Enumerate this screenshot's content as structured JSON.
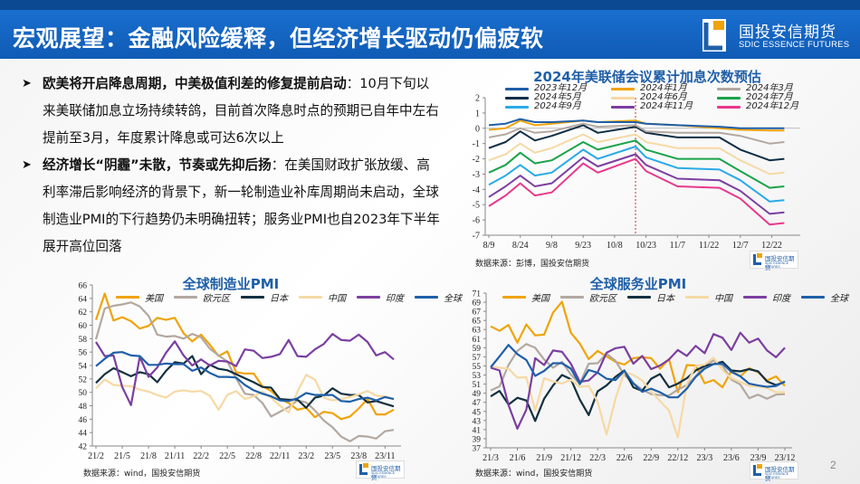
{
  "header": {
    "title": "宏观展望：金融风险缓释，但经济增长驱动仍偏疲软",
    "logo_cn": "国投安信期货",
    "logo_en": "SDIC ESSENCE FUTURES"
  },
  "bullets": [
    {
      "bold": "欧美将开启降息周期，中美极值利差的修复提前启动",
      "text": "：10月下旬以来美联储加息立场持续转鸽，目前首次降息时点的预期已自年中左右提前至3月，年度累计降息或可达6次以上"
    },
    {
      "bold": "经济增长“阴霾”未散，节奏或先抑后扬",
      "text": "：在美国财政扩张放缓、高利率滞后影响经济的背景下，新一轮制造业补库周期尚未启动，全球制造业PMI的下行趋势仍未明确扭转；服务业PMI也自2023年下半年展开高位回落"
    }
  ],
  "page_number": "2",
  "mini_logo_cn": "国投安信期货",
  "mini_logo_en": "SDIC ESSENCE FUTURES",
  "chart_data": [
    {
      "id": "fed",
      "type": "line",
      "title": "2024年美联储会议累计加息次数预估",
      "source": "数据来源：彭博，国投安信期货",
      "xlabel": "",
      "ylabel": "",
      "x_unit": "days since 8/9",
      "xlim": [
        0,
        146
      ],
      "ylim": [
        -7,
        2
      ],
      "yticks": [
        -7,
        -6,
        -5,
        -4,
        -3,
        -2,
        -1,
        0,
        1,
        2
      ],
      "x_tick_values": [
        0,
        15,
        30,
        45,
        60,
        75,
        90,
        105,
        120,
        135
      ],
      "x_tick_labels": [
        "8/9",
        "8/24",
        "9/8",
        "9/23",
        "10/8",
        "10/23",
        "11/7",
        "11/22",
        "12/7",
        "12/22"
      ],
      "marker_line": {
        "x": 70,
        "color": "#c0392b"
      },
      "legend": "top",
      "x": [
        0,
        8,
        15,
        22,
        30,
        45,
        52,
        70,
        75,
        90,
        110,
        120,
        134,
        141
      ],
      "series": [
        {
          "name": "2023年12月",
          "color": "#1f5fa8",
          "values": [
            0.2,
            0.3,
            0.6,
            0.4,
            0.4,
            0.5,
            0.4,
            0.4,
            0.3,
            0.2,
            0.1,
            0.0,
            0.0,
            0.0
          ]
        },
        {
          "name": "2024年1月",
          "color": "#f0a30a",
          "values": [
            -0.1,
            0.0,
            0.5,
            0.2,
            0.3,
            0.5,
            0.4,
            0.5,
            0.3,
            0.2,
            0.0,
            -0.1,
            -0.15,
            -0.15
          ]
        },
        {
          "name": "2024年3月",
          "color": "#b3a8a0",
          "values": [
            -0.6,
            -0.4,
            0.0,
            -0.3,
            -0.2,
            0.3,
            0.1,
            0.2,
            -0.2,
            -0.3,
            -0.3,
            -0.5,
            -1.0,
            -0.9
          ]
        },
        {
          "name": "2024年5月",
          "color": "#0f2e45",
          "values": [
            -1.3,
            -0.9,
            -0.2,
            -0.8,
            -0.5,
            0.2,
            -0.3,
            0.1,
            -0.3,
            -0.6,
            -0.6,
            -1.4,
            -2.1,
            -2.0
          ]
        },
        {
          "name": "2024年6月",
          "color": "#f6d9a4",
          "values": [
            -2.1,
            -1.7,
            -1.0,
            -1.6,
            -1.3,
            -0.4,
            -0.9,
            -0.4,
            -0.9,
            -1.3,
            -1.3,
            -2.1,
            -3.0,
            -2.9
          ]
        },
        {
          "name": "2024年7月",
          "color": "#1aa34a",
          "values": [
            -2.9,
            -2.4,
            -1.6,
            -2.3,
            -2.1,
            -0.9,
            -1.4,
            -0.8,
            -1.4,
            -2.0,
            -2.0,
            -2.8,
            -3.9,
            -3.8
          ]
        },
        {
          "name": "2024年9月",
          "color": "#2aaae8",
          "values": [
            -3.7,
            -3.1,
            -2.4,
            -3.1,
            -2.9,
            -1.4,
            -2.0,
            -1.2,
            -1.9,
            -2.6,
            -2.7,
            -3.4,
            -4.8,
            -4.7
          ]
        },
        {
          "name": "2024年11月",
          "color": "#7b3fa0",
          "values": [
            -4.5,
            -3.8,
            -3.1,
            -3.8,
            -3.6,
            -1.9,
            -2.5,
            -1.7,
            -2.4,
            -3.3,
            -3.4,
            -4.1,
            -5.6,
            -5.5
          ]
        },
        {
          "name": "2024年12月",
          "color": "#e8388c",
          "values": [
            -5.1,
            -4.4,
            -3.6,
            -4.4,
            -4.2,
            -2.3,
            -2.9,
            -2.0,
            -2.8,
            -3.8,
            -3.9,
            -4.6,
            -6.3,
            -6.2
          ]
        }
      ]
    },
    {
      "id": "mfg",
      "type": "line",
      "title": "全球制造业PMI",
      "source": "数据来源：wind，国投安信期货",
      "xlabel": "",
      "ylabel": "",
      "x_unit": "month index from 21/2",
      "xlim": [
        0,
        34
      ],
      "ylim": [
        42,
        66
      ],
      "yticks": [
        42,
        44,
        46,
        48,
        50,
        52,
        54,
        56,
        58,
        60,
        62,
        64,
        66
      ],
      "x_tick_values": [
        0,
        3,
        6,
        9,
        12,
        15,
        18,
        21,
        24,
        27,
        30,
        33
      ],
      "x_tick_labels": [
        "21/2",
        "21/5",
        "21/8",
        "21/11",
        "22/2",
        "22/5",
        "22/8",
        "22/11",
        "23/2",
        "23/5",
        "23/8",
        "23/11"
      ],
      "legend": "top",
      "series": [
        {
          "name": "美国",
          "color": "#f0a30a",
          "values": [
            60.8,
            64.7,
            60.7,
            61.2,
            60.6,
            59.5,
            59.9,
            61.1,
            60.8,
            61.1,
            58.8,
            57.6,
            58.6,
            57.1,
            55.4,
            56.1,
            53.0,
            52.8,
            52.8,
            50.9,
            50.2,
            49.0,
            48.4,
            47.4,
            47.7,
            46.3,
            47.1,
            46.9,
            46.0,
            46.4,
            47.6,
            49.0,
            46.7,
            46.7,
            47.4
          ]
        },
        {
          "name": "欧元区",
          "color": "#b3a8a0",
          "values": [
            57.9,
            62.5,
            62.9,
            63.1,
            63.4,
            62.8,
            61.4,
            58.6,
            58.3,
            58.4,
            58.0,
            58.7,
            58.2,
            56.5,
            55.5,
            54.6,
            52.1,
            49.8,
            49.6,
            48.4,
            46.4,
            47.1,
            47.8,
            48.8,
            48.5,
            47.3,
            45.8,
            44.8,
            43.4,
            42.7,
            43.5,
            43.4,
            43.1,
            44.2,
            44.4
          ]
        },
        {
          "name": "日本",
          "color": "#14303f",
          "values": [
            51.4,
            52.7,
            53.6,
            53.0,
            52.4,
            53.0,
            52.7,
            51.5,
            53.2,
            54.5,
            54.3,
            55.4,
            52.7,
            54.1,
            53.5,
            53.3,
            52.7,
            52.1,
            51.5,
            50.8,
            50.7,
            49.0,
            48.9,
            48.9,
            47.7,
            49.2,
            49.5,
            50.6,
            49.8,
            49.6,
            49.6,
            48.5,
            48.7,
            48.3,
            47.9
          ]
        },
        {
          "name": "中国",
          "color": "#f6d9a4",
          "values": [
            50.6,
            51.9,
            51.1,
            51.0,
            50.9,
            50.4,
            50.1,
            49.6,
            49.2,
            50.1,
            50.3,
            50.1,
            50.2,
            49.5,
            47.4,
            49.6,
            50.2,
            49.0,
            49.4,
            50.1,
            49.2,
            48.0,
            47.0,
            50.1,
            52.6,
            51.9,
            49.2,
            48.8,
            49.0,
            49.3,
            49.7,
            50.2,
            49.5,
            49.4,
            49.0
          ]
        },
        {
          "name": "印度",
          "color": "#7b3fa0",
          "values": [
            57.5,
            55.4,
            55.5,
            50.8,
            48.1,
            55.3,
            52.3,
            53.7,
            55.9,
            57.6,
            55.5,
            54.0,
            54.9,
            54.0,
            54.7,
            54.6,
            53.9,
            56.4,
            56.2,
            55.1,
            55.3,
            55.7,
            57.8,
            55.4,
            55.3,
            56.4,
            57.2,
            58.7,
            57.8,
            57.7,
            58.6,
            57.5,
            55.5,
            56.0,
            54.9
          ]
        },
        {
          "name": "全球",
          "color": "#1f5fa8",
          "values": [
            53.9,
            55.0,
            55.9,
            56.0,
            55.5,
            55.4,
            54.1,
            54.1,
            54.3,
            54.2,
            54.2,
            53.2,
            53.7,
            52.9,
            52.3,
            52.3,
            52.2,
            51.1,
            50.3,
            49.8,
            49.4,
            48.8,
            48.7,
            49.1,
            49.9,
            49.6,
            49.6,
            49.6,
            48.7,
            48.6,
            49.0,
            49.2,
            48.8,
            49.3,
            49.0
          ]
        }
      ]
    },
    {
      "id": "svc",
      "type": "line",
      "title": "全球服务业PMI",
      "source": "数据来源：wind，国投安信期货",
      "xlabel": "",
      "ylabel": "",
      "x_unit": "month index from 21/3",
      "xlim": [
        0,
        33
      ],
      "ylim": [
        37,
        71
      ],
      "yticks": [
        37,
        39,
        41,
        43,
        45,
        47,
        49,
        51,
        53,
        55,
        57,
        59,
        61,
        63,
        65,
        67,
        69,
        71
      ],
      "x_tick_values": [
        0,
        3,
        6,
        9,
        12,
        15,
        18,
        21,
        24,
        27,
        30,
        33
      ],
      "x_tick_labels": [
        "21/3",
        "21/6",
        "21/9",
        "21/12",
        "22/3",
        "22/6",
        "22/9",
        "22/12",
        "23/3",
        "23/6",
        "23/9",
        "23/12"
      ],
      "legend": "top",
      "series": [
        {
          "name": "美国",
          "color": "#f0a30a",
          "values": [
            63.7,
            62.7,
            64.0,
            60.1,
            64.1,
            61.7,
            61.9,
            66.7,
            69.1,
            62.3,
            59.9,
            56.5,
            58.3,
            57.1,
            55.9,
            55.3,
            56.7,
            56.9,
            56.7,
            54.4,
            56.5,
            49.2,
            55.2,
            55.1,
            51.2,
            51.9,
            50.3,
            53.9,
            52.7,
            54.5,
            53.6,
            51.8,
            52.7,
            50.6
          ]
        },
        {
          "name": "欧元区",
          "color": "#b3a8a0",
          "values": [
            49.6,
            50.5,
            55.2,
            58.3,
            59.8,
            59.0,
            56.4,
            54.6,
            55.9,
            53.1,
            51.1,
            55.5,
            55.6,
            57.7,
            56.1,
            53.0,
            51.2,
            49.8,
            48.8,
            48.6,
            48.5,
            49.8,
            50.8,
            52.7,
            55.0,
            56.2,
            55.1,
            52.0,
            50.9,
            47.9,
            48.7,
            47.8,
            48.7,
            48.8
          ]
        },
        {
          "name": "日本",
          "color": "#14303f",
          "values": [
            48.3,
            49.5,
            46.5,
            48.0,
            47.4,
            42.9,
            47.8,
            50.7,
            53.0,
            52.1,
            47.6,
            44.2,
            49.4,
            50.7,
            52.6,
            54.0,
            50.3,
            49.5,
            52.2,
            53.2,
            50.3,
            51.1,
            52.3,
            54.0,
            55.0,
            55.4,
            55.9,
            54.0,
            53.8,
            54.3,
            53.8,
            51.6,
            50.8,
            51.5
          ]
        },
        {
          "name": "中国",
          "color": "#f6d9a4",
          "values": [
            54.9,
            54.6,
            54.4,
            52.4,
            52.5,
            45.2,
            52.3,
            51.6,
            51.1,
            52.0,
            50.4,
            50.6,
            47.1,
            39.9,
            47.8,
            53.7,
            53.0,
            51.8,
            49.4,
            47.3,
            45.2,
            39.3,
            51.0,
            55.0,
            55.3,
            56.8,
            54.1,
            52.3,
            51.5,
            50.6,
            50.5,
            50.1,
            49.2,
            49.2
          ]
        },
        {
          "name": "印度",
          "color": "#7b3fa0",
          "values": [
            54.6,
            54.0,
            46.4,
            41.2,
            45.4,
            56.7,
            55.2,
            58.4,
            58.1,
            55.5,
            51.5,
            51.8,
            53.6,
            57.9,
            58.9,
            59.2,
            55.5,
            57.2,
            54.3,
            55.1,
            56.4,
            58.5,
            57.2,
            59.4,
            57.8,
            62.0,
            61.2,
            58.5,
            62.3,
            60.1,
            61.0,
            58.4,
            56.9,
            59.0
          ]
        },
        {
          "name": "全球",
          "color": "#1f5fa8",
          "values": [
            54.7,
            57.1,
            59.6,
            57.6,
            56.3,
            52.8,
            53.9,
            55.6,
            55.6,
            54.4,
            51.0,
            54.1,
            53.5,
            52.2,
            51.9,
            53.9,
            51.2,
            49.3,
            50.0,
            49.2,
            48.1,
            48.1,
            50.0,
            52.6,
            54.4,
            55.4,
            55.5,
            53.7,
            52.7,
            51.1,
            50.7,
            50.4,
            50.6,
            51.6
          ]
        }
      ]
    }
  ]
}
